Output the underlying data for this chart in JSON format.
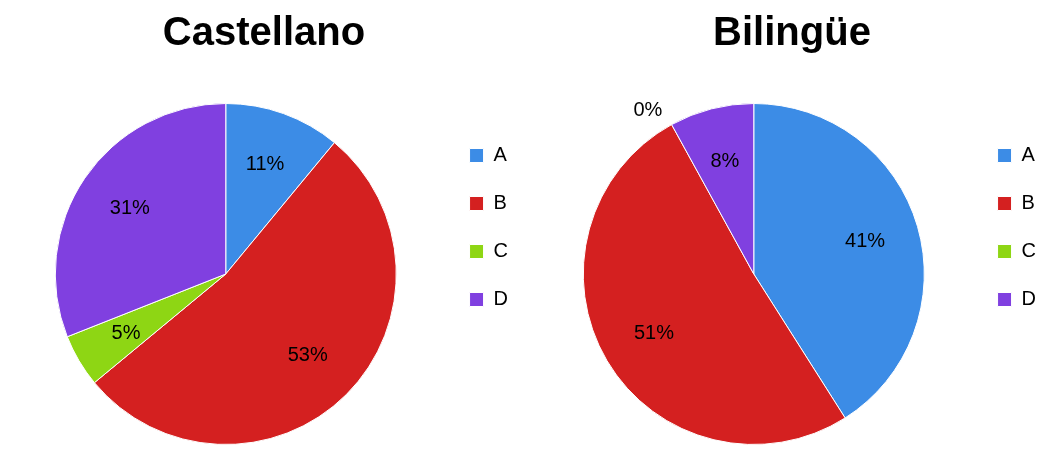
{
  "chart_data": [
    {
      "type": "pie",
      "title": "Castellano",
      "categories": [
        "A",
        "B",
        "C",
        "D"
      ],
      "values": [
        11,
        53,
        5,
        31
      ],
      "colors": [
        "#3c8ce6",
        "#d42020",
        "#8ed614",
        "#8040e0"
      ],
      "value_labels": [
        "11%",
        "53%",
        "5%",
        "31%"
      ],
      "legend": "right"
    },
    {
      "type": "pie",
      "title": "Bilingüe",
      "categories": [
        "A",
        "B",
        "C",
        "D"
      ],
      "values": [
        41,
        51,
        0,
        8
      ],
      "colors": [
        "#3c8ce6",
        "#d42020",
        "#8ed614",
        "#8040e0"
      ],
      "value_labels": [
        "41%",
        "51%",
        "0%",
        "8%"
      ],
      "legend": "right"
    }
  ]
}
